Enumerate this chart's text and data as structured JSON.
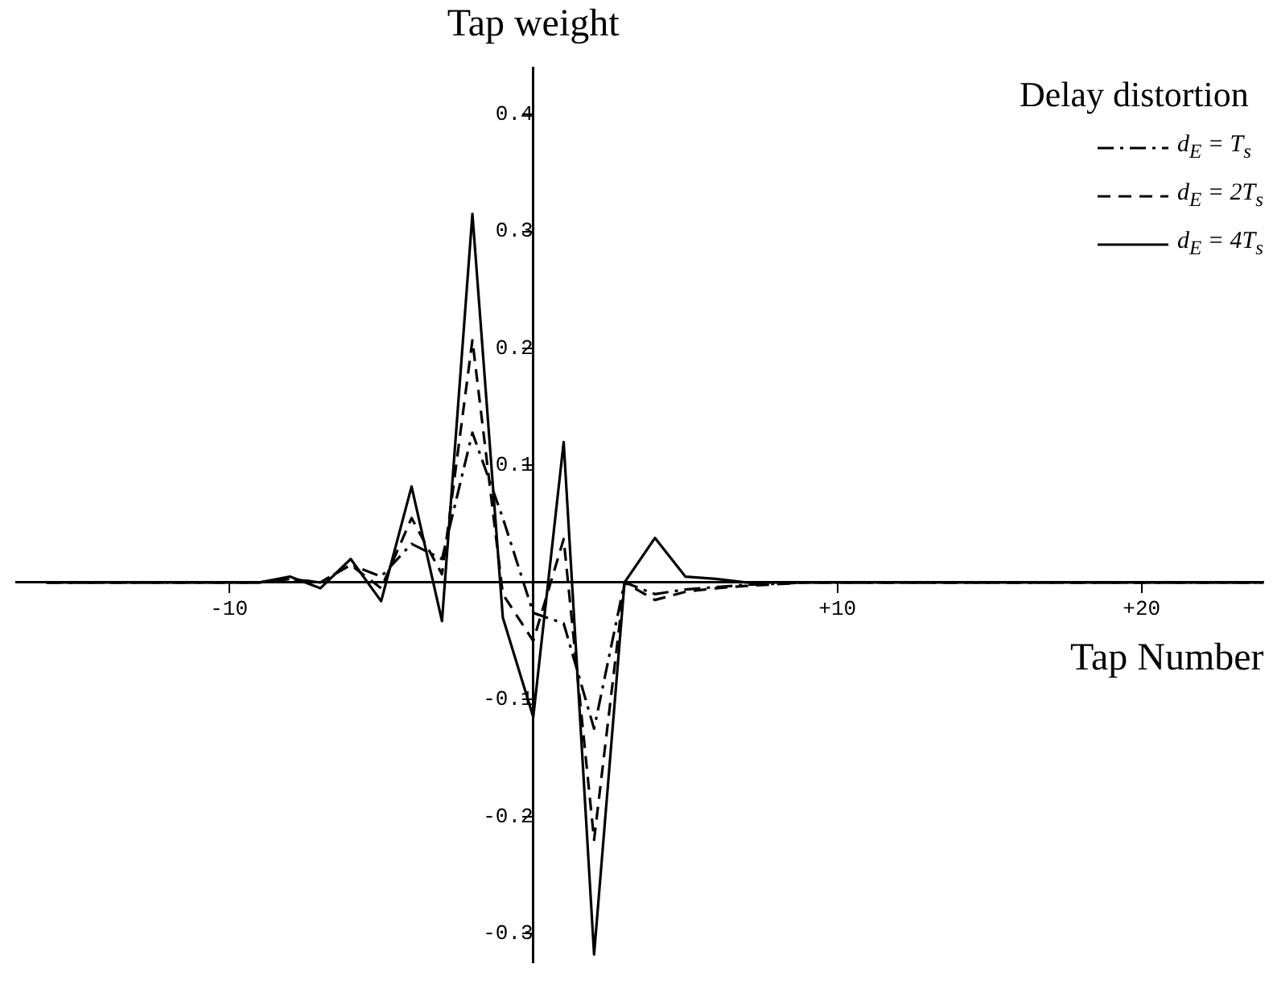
{
  "chart_data": {
    "type": "line",
    "xlabel": "Tap Number",
    "ylabel": "Tap weight",
    "legend_title": "Delay distortion",
    "legend": "top right",
    "grid": false,
    "marker": "none",
    "x": [
      -16,
      -12,
      -9,
      -8,
      -7,
      -6,
      -5,
      -4,
      -3,
      -2,
      -1,
      0,
      1,
      2,
      3,
      4,
      5,
      6,
      7,
      9,
      24
    ],
    "xlim": [
      -17,
      24
    ],
    "xticks": [
      {
        "value": -10,
        "label": "-10"
      },
      {
        "value": 10,
        "label": "+10"
      },
      {
        "value": 20,
        "label": "+20"
      }
    ],
    "ylim": [
      -0.325,
      0.44
    ],
    "yticks": [
      0.4,
      0.3,
      0.2,
      0.1,
      -0.1,
      -0.2,
      -0.3
    ],
    "series": [
      {
        "name": "d$_{E}$ = T$_{s}$",
        "color": "#000000",
        "line_style": "dashdot",
        "values": [
          0,
          0,
          0,
          0.003,
          0,
          0.015,
          0.005,
          0.033,
          0.02,
          0.128,
          0.055,
          -0.026,
          -0.035,
          -0.125,
          0,
          -0.01,
          -0.006,
          -0.004,
          -0.002,
          0,
          0
        ]
      },
      {
        "name": "d$_{E}$ = 2T$_{s}$",
        "color": "#000000",
        "line_style": "dashed",
        "values": [
          0,
          0,
          0,
          0.003,
          0,
          0.015,
          -0.005,
          0.055,
          0.007,
          0.207,
          -0.01,
          -0.05,
          0.037,
          -0.22,
          0,
          -0.015,
          -0.008,
          -0.005,
          -0.003,
          0,
          0
        ]
      },
      {
        "name": "d$_{E}$ = 4T$_{s}$",
        "color": "#000000",
        "line_style": "solid",
        "values": [
          0,
          0,
          0,
          0.005,
          -0.005,
          0.02,
          -0.016,
          0.082,
          -0.033,
          0.315,
          -0.03,
          -0.115,
          0.12,
          -0.318,
          0,
          0.038,
          0.005,
          0.003,
          0,
          0,
          0
        ]
      }
    ]
  }
}
